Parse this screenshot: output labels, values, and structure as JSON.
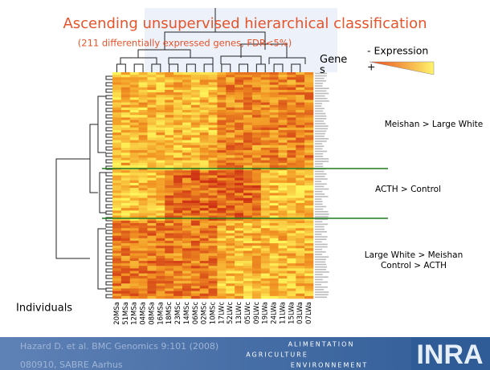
{
  "slide": {
    "title": "Ascending unsupervised hierarchical classification",
    "subtitle": "(211 differentially expressed genes, FDR<5%)",
    "gene_label": "Gene s",
    "legend": {
      "minus": "- Expression",
      "plus": "+"
    },
    "annotations": [
      {
        "lines": [
          "Meishan > Large White"
        ]
      },
      {
        "lines": [
          "ACTH > Control"
        ]
      },
      {
        "lines": [
          "Large White > Meishan",
          "Control > ACTH"
        ]
      }
    ],
    "individuals_label": "Individuals",
    "samples": [
      "20MSa",
      "51MSa",
      "12MSa",
      "04MSa",
      "08MSa",
      "16MSa",
      "18MSc",
      "23MSc",
      "14MSc",
      "06MSc",
      "02MSc",
      "10MSc",
      "17LWc",
      "52LWc",
      "13LWc",
      "05LWc",
      "09LWc",
      "19LWa",
      "24LWa",
      "11LWa",
      "15LWa",
      "03LWa",
      "07LWa"
    ],
    "footer": {
      "citation": "Hazard D. et al. BMC Genomics 9:101 (2008)",
      "event": "080910, SABRE Aarhus",
      "motto": [
        "ALIMENTATION",
        "AGRICULTURE",
        "ENVIRONNEMENT"
      ],
      "logo": "INRA"
    }
  }
}
